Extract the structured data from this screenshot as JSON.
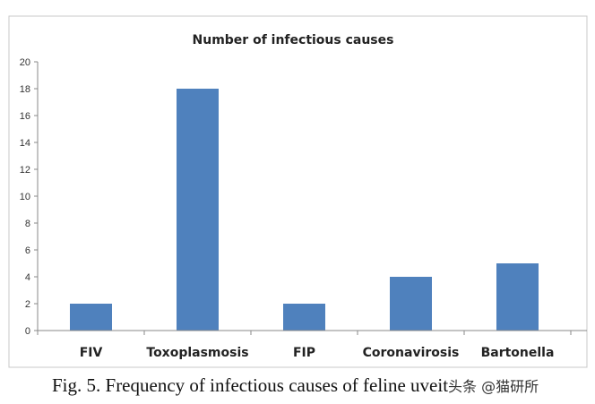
{
  "chart_data": {
    "type": "bar",
    "title": "Number of infectious causes",
    "categories": [
      "FIV",
      "Toxoplasmosis",
      "FIP",
      "Coronavirosis",
      "Bartonella"
    ],
    "values": [
      2,
      18,
      2,
      4,
      5
    ],
    "xlabel": "",
    "ylabel": "",
    "ylim": [
      0,
      20
    ],
    "yticks": [
      0,
      2,
      4,
      6,
      8,
      10,
      12,
      14,
      16,
      18,
      20
    ],
    "bar_color": "#4f81bd",
    "grid": false
  },
  "caption": "Fig. 5. Frequency of infectious causes of feline uveit",
  "watermark": "头条 @猫研所"
}
